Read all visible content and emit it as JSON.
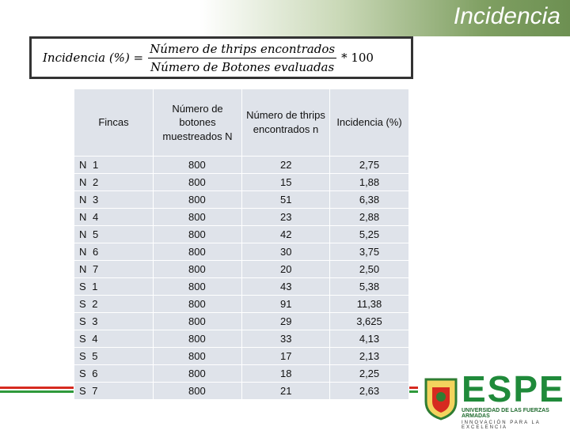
{
  "header": {
    "title": "Incidencia"
  },
  "formula": {
    "lhs": "Incidencia (%) =",
    "numerator": "Número de thrips encontrados",
    "denominator": "Número de Botones evaluadas",
    "multiplier": "* 100"
  },
  "table": {
    "columns": [
      "Fincas",
      "Número de botones muestreados N",
      "Número de thrips encontrados n",
      "Incidencia (%)"
    ],
    "rows": [
      [
        "N 1",
        "800",
        "22",
        "2,75"
      ],
      [
        "N 2",
        "800",
        "15",
        "1,88"
      ],
      [
        "N 3",
        "800",
        "51",
        "6,38"
      ],
      [
        "N 4",
        "800",
        "23",
        "2,88"
      ],
      [
        "N 5",
        "800",
        "42",
        "5,25"
      ],
      [
        "N 6",
        "800",
        "30",
        "3,75"
      ],
      [
        "N 7",
        "800",
        "20",
        "2,50"
      ],
      [
        "S 1",
        "800",
        "43",
        "5,38"
      ],
      [
        "S 2",
        "800",
        "91",
        "11,38"
      ],
      [
        "S 3",
        "800",
        "29",
        "3,625"
      ],
      [
        "S 4",
        "800",
        "33",
        "4,13"
      ],
      [
        "S 5",
        "800",
        "17",
        "2,13"
      ],
      [
        "S 6",
        "800",
        "18",
        "2,25"
      ],
      [
        "S 7",
        "800",
        "21",
        "2,63"
      ]
    ]
  },
  "logo": {
    "name": "ESPE",
    "university": "UNIVERSIDAD DE LAS FUERZAS ARMADAS",
    "motto": "INNOVACIÓN PARA LA EXCELENCIA"
  }
}
